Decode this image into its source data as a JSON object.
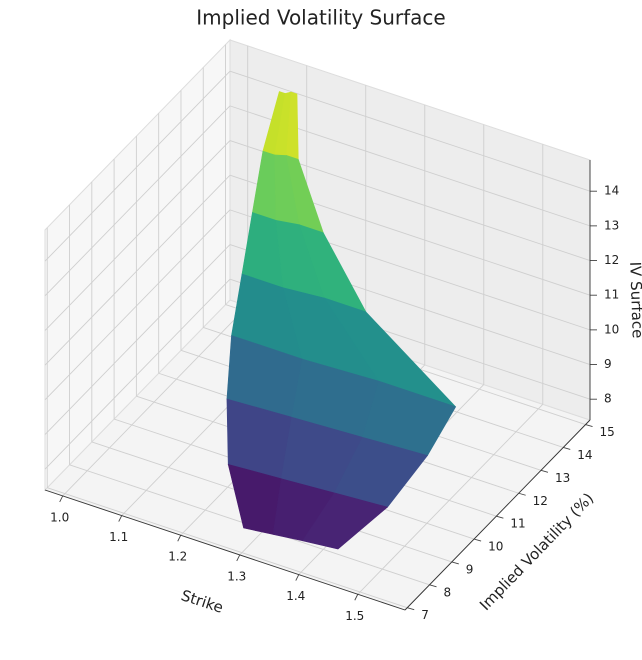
{
  "chart_data": {
    "type": "surface",
    "title": "Implied Volatility Surface",
    "xlabel": "Strike",
    "ylabel": "Implied Volatility (%)",
    "zlabel": "IV Surface",
    "colormap": "viridis",
    "xlim": [
      0.97,
      1.58
    ],
    "ylim": [
      6.9,
      15.2
    ],
    "zlim": [
      7.4,
      14.9
    ],
    "xticks": [
      {
        "value": 1.0,
        "label": "1.0"
      },
      1.1,
      1.2,
      1.3,
      1.4,
      1.5
    ],
    "yticks": [
      7,
      8,
      9,
      10,
      11,
      12,
      13,
      14,
      15
    ],
    "zticks": [
      8,
      9,
      10,
      11,
      12,
      13,
      14
    ],
    "grid": true,
    "surface": {
      "y": [
        7.6,
        8.5,
        9.5,
        10.5,
        11.5,
        12.5,
        13.5,
        14.5
      ],
      "x": [
        [
          1.28,
          1.33,
          1.38,
          1.44
        ],
        [
          1.22,
          1.31,
          1.4,
          1.49
        ],
        [
          1.18,
          1.29,
          1.41,
          1.52
        ],
        [
          1.15,
          1.27,
          1.4,
          1.53
        ],
        [
          1.13,
          1.2,
          1.27,
          1.34
        ],
        [
          1.11,
          1.15,
          1.19,
          1.23
        ],
        [
          1.09,
          1.11,
          1.13,
          1.15
        ],
        [
          1.08,
          1.09,
          1.1,
          1.11
        ]
      ],
      "z": [
        [
          7.6,
          7.7,
          7.8,
          7.9
        ],
        [
          8.5,
          8.6,
          8.7,
          8.8
        ],
        [
          9.5,
          9.6,
          9.7,
          9.8
        ],
        [
          10.5,
          10.5,
          10.6,
          10.6
        ],
        [
          11.5,
          11.5,
          11.6,
          11.6
        ],
        [
          12.5,
          12.5,
          12.6,
          12.6
        ],
        [
          13.5,
          13.5,
          13.6,
          13.6
        ],
        [
          14.5,
          14.5,
          14.6,
          14.6
        ]
      ]
    }
  }
}
